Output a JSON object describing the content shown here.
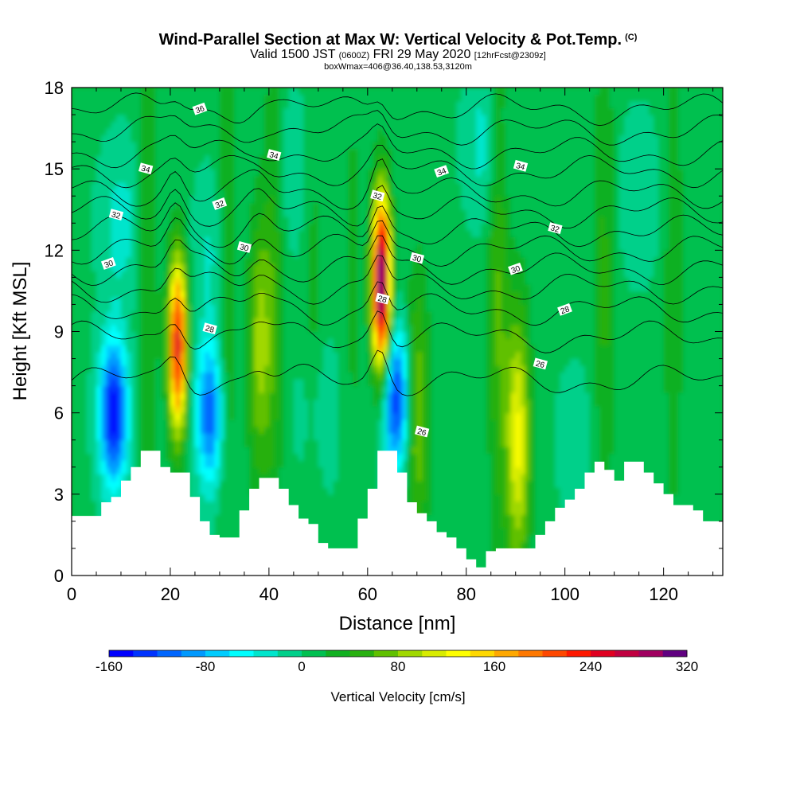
{
  "header": {
    "title": "Wind-Parallel Section at Max W: Vertical Velocity & Pot.Temp.",
    "copyright": "(C)",
    "valid_prefix": "Valid 1500 JST",
    "valid_utc": "(0600Z)",
    "valid_date": "FRI 29 May 2020",
    "forecast": "[12hrFcst@2309z]",
    "box_info": "boxWmax=406@36.40,138.53,3120m"
  },
  "chart_data": {
    "type": "heatmap",
    "xlabel": "Distance [nm]",
    "ylabel": "Height [Kft MSL]",
    "xlim": [
      0,
      132
    ],
    "ylim": [
      0,
      18
    ],
    "x_ticks": [
      0,
      20,
      40,
      60,
      80,
      100,
      120
    ],
    "y_ticks": [
      0,
      3,
      6,
      9,
      12,
      15,
      18
    ],
    "colorbar": {
      "title": "Vertical Velocity [cm/s]",
      "min": -160,
      "max": 320,
      "step": 20,
      "labels": [
        -160,
        -80,
        0,
        80,
        160,
        240,
        320
      ],
      "colors": [
        "#0000ff",
        "#0033ff",
        "#0066ff",
        "#0099ff",
        "#00ccff",
        "#00ffff",
        "#00e5cc",
        "#00d08a",
        "#00c050",
        "#10b020",
        "#28b010",
        "#60c000",
        "#a0d800",
        "#d8ec00",
        "#ffff00",
        "#ffd800",
        "#ffa800",
        "#ff7800",
        "#ff4800",
        "#ff1800",
        "#e00020",
        "#c00040",
        "#a00060",
        "#800078",
        "#600080"
      ]
    },
    "terrain_kft": [
      [
        0,
        2.2
      ],
      [
        6,
        2.7
      ],
      [
        8,
        2.9
      ],
      [
        10,
        3.5
      ],
      [
        12,
        4.0
      ],
      [
        14,
        4.6
      ],
      [
        16,
        4.6
      ],
      [
        18,
        4.0
      ],
      [
        20,
        3.8
      ],
      [
        22,
        3.8
      ],
      [
        24,
        2.9
      ],
      [
        26,
        2.0
      ],
      [
        28,
        1.5
      ],
      [
        30,
        1.4
      ],
      [
        32,
        1.4
      ],
      [
        34,
        2.4
      ],
      [
        36,
        3.2
      ],
      [
        38,
        3.6
      ],
      [
        40,
        3.6
      ],
      [
        42,
        3.2
      ],
      [
        44,
        2.6
      ],
      [
        46,
        2.1
      ],
      [
        48,
        1.9
      ],
      [
        50,
        1.2
      ],
      [
        52,
        1.0
      ],
      [
        54,
        1.0
      ],
      [
        56,
        1.0
      ],
      [
        58,
        2.1
      ],
      [
        60,
        3.2
      ],
      [
        62,
        4.6
      ],
      [
        64,
        4.6
      ],
      [
        66,
        3.8
      ],
      [
        68,
        2.7
      ],
      [
        70,
        2.3
      ],
      [
        72,
        2.0
      ],
      [
        74,
        1.6
      ],
      [
        76,
        1.4
      ],
      [
        78,
        1.0
      ],
      [
        80,
        0.6
      ],
      [
        82,
        0.3
      ],
      [
        84,
        0.9
      ],
      [
        86,
        1.0
      ],
      [
        88,
        1.0
      ],
      [
        90,
        1.0
      ],
      [
        92,
        1.0
      ],
      [
        94,
        1.5
      ],
      [
        96,
        2.0
      ],
      [
        98,
        2.5
      ],
      [
        100,
        2.8
      ],
      [
        102,
        3.2
      ],
      [
        104,
        3.8
      ],
      [
        106,
        4.2
      ],
      [
        108,
        3.9
      ],
      [
        110,
        3.5
      ],
      [
        112,
        4.2
      ],
      [
        114,
        4.2
      ],
      [
        116,
        3.8
      ],
      [
        118,
        3.4
      ],
      [
        120,
        3.0
      ],
      [
        122,
        2.6
      ],
      [
        124,
        2.6
      ],
      [
        126,
        2.4
      ],
      [
        128,
        2.0
      ],
      [
        130,
        2.0
      ],
      [
        132,
        1.7
      ]
    ],
    "updraft_cores": [
      {
        "x": 62.8,
        "y": 10.8,
        "w": 320
      },
      {
        "x": 21.5,
        "y": 8.5,
        "w": 240
      },
      {
        "x": 90.5,
        "y": 5.0,
        "w": 120
      },
      {
        "x": 38.0,
        "y": 8.5,
        "w": 80
      },
      {
        "x": 70.0,
        "y": 6.0,
        "w": 80
      }
    ],
    "downdraft_cores": [
      {
        "x": 8.5,
        "y": 6.0,
        "w": -160
      },
      {
        "x": 28.0,
        "y": 6.0,
        "w": -120
      },
      {
        "x": 65.8,
        "y": 6.5,
        "w": -140
      }
    ],
    "theta_contour_labels": [
      {
        "text": "36",
        "x": 26,
        "y": 17.2
      },
      {
        "text": "34",
        "x": 15,
        "y": 15.0
      },
      {
        "text": "34",
        "x": 41,
        "y": 15.5
      },
      {
        "text": "34",
        "x": 75,
        "y": 14.9
      },
      {
        "text": "34",
        "x": 91,
        "y": 15.1
      },
      {
        "text": "32",
        "x": 9,
        "y": 13.3
      },
      {
        "text": "32",
        "x": 30,
        "y": 13.7
      },
      {
        "text": "32",
        "x": 62,
        "y": 14.0
      },
      {
        "text": "32",
        "x": 98,
        "y": 12.8
      },
      {
        "text": "30",
        "x": 7.5,
        "y": 11.5
      },
      {
        "text": "30",
        "x": 35,
        "y": 12.1
      },
      {
        "text": "30",
        "x": 70,
        "y": 11.7
      },
      {
        "text": "30",
        "x": 90,
        "y": 11.3
      },
      {
        "text": "28",
        "x": 28,
        "y": 9.1
      },
      {
        "text": "28",
        "x": 63,
        "y": 10.2
      },
      {
        "text": "28",
        "x": 100,
        "y": 9.8
      },
      {
        "text": "26",
        "x": 95,
        "y": 7.8
      },
      {
        "text": "26",
        "x": 71,
        "y": 5.3
      }
    ]
  }
}
